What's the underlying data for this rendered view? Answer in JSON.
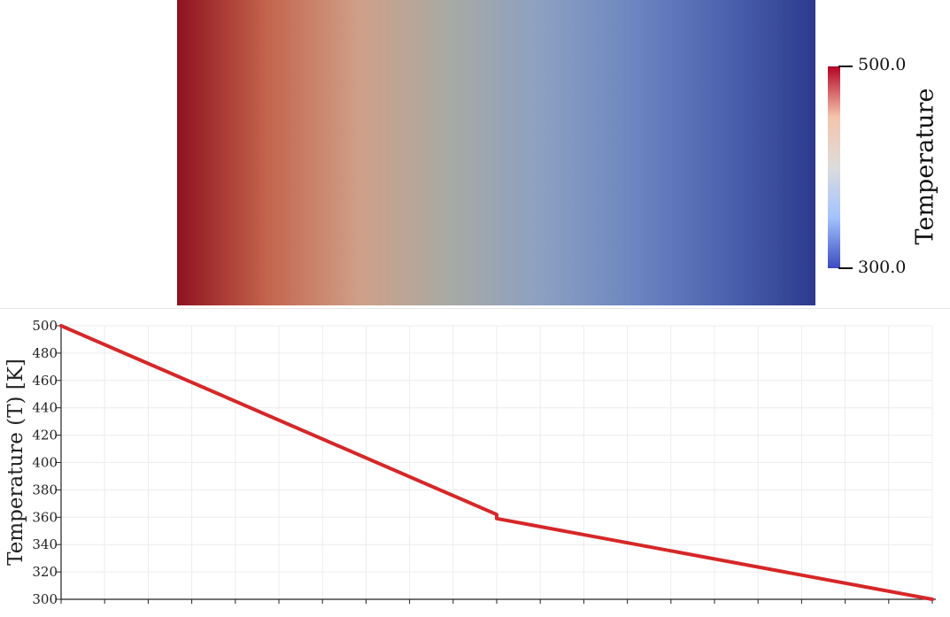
{
  "colorbar": {
    "title": "Temperature",
    "max_label": "500.0",
    "min_label": "300.0",
    "colors": [
      "#b40426",
      "#f5c4ac",
      "#dddcdc",
      "#a3c2fe",
      "#3b4cc0"
    ]
  },
  "field": {
    "gradient_colors": [
      "#8e1220",
      "#c4654d",
      "#cfa088",
      "#a7aaa4",
      "#8ca0c2",
      "#6d86c0",
      "#4c63b0",
      "#2d3a8c"
    ]
  },
  "chart_data": {
    "type": "line",
    "ylabel": "Temperature (T) [K]",
    "xlim": [
      0,
      1
    ],
    "ylim": [
      300,
      500
    ],
    "yticks": [
      "300",
      "320",
      "340",
      "360",
      "380",
      "400",
      "420",
      "440",
      "460",
      "480",
      "500"
    ],
    "grid": true,
    "series": [
      {
        "color": "#d62728",
        "x": [
          0,
          0.5,
          0.5,
          1
        ],
        "y": [
          500,
          362,
          359,
          300
        ]
      }
    ]
  }
}
